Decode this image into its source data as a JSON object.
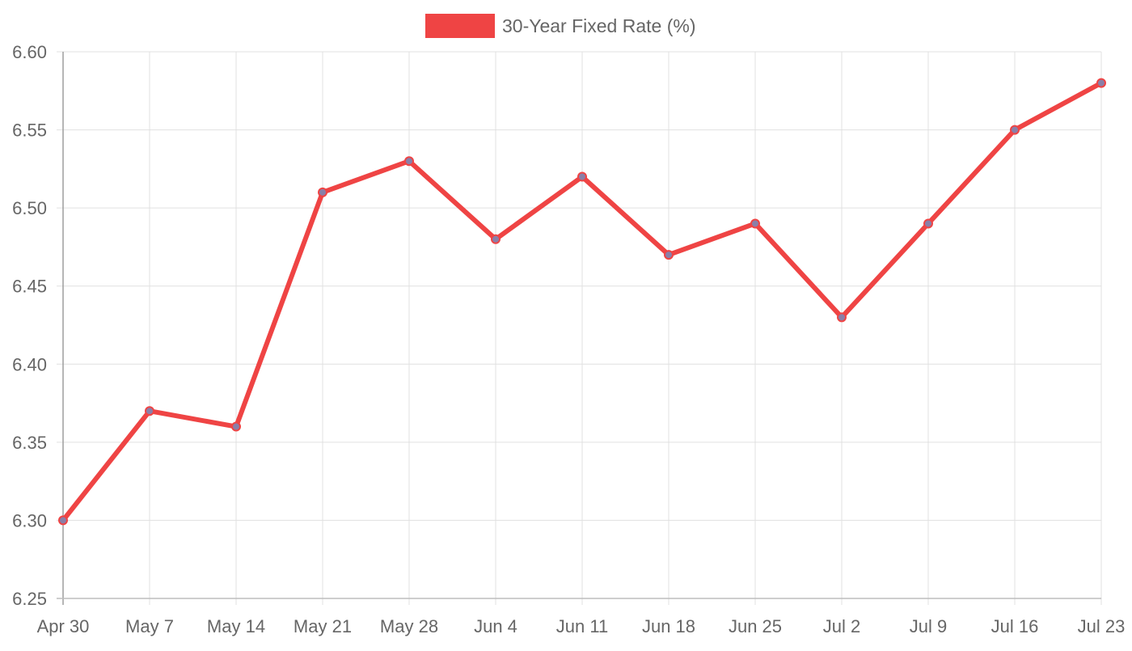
{
  "chart_data": {
    "type": "line",
    "title": "",
    "xlabel": "",
    "ylabel": "",
    "categories": [
      "Apr 30",
      "May 7",
      "May 14",
      "May 21",
      "May 28",
      "Jun 4",
      "Jun 11",
      "Jun 18",
      "Jun 25",
      "Jul 2",
      "Jul 9",
      "Jul 16",
      "Jul 23"
    ],
    "series": [
      {
        "name": "30-Year Fixed Rate (%)",
        "values": [
          6.3,
          6.37,
          6.36,
          6.51,
          6.53,
          6.48,
          6.52,
          6.47,
          6.49,
          6.43,
          6.49,
          6.55,
          6.58
        ],
        "color": "#ef4444",
        "point_color": "#8a7fa8"
      }
    ],
    "ylim": [
      6.25,
      6.6
    ],
    "yticks": [
      "6.25",
      "6.30",
      "6.35",
      "6.40",
      "6.45",
      "6.50",
      "6.55",
      "6.60"
    ],
    "grid": true,
    "legend_position": "top-center"
  }
}
